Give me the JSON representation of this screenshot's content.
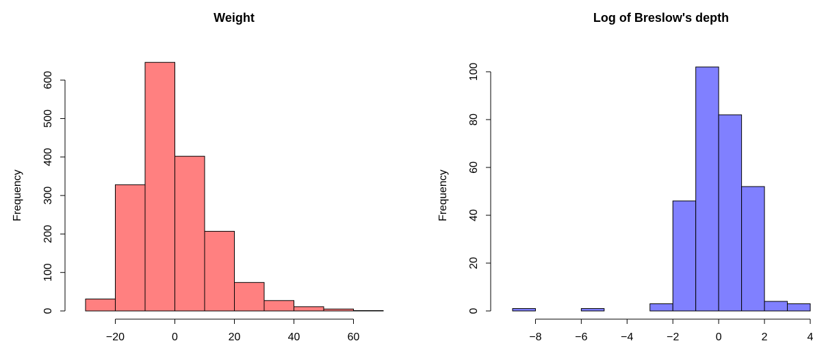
{
  "chart_data": [
    {
      "type": "bar",
      "title": "Weight",
      "xlabel": "",
      "ylabel": "Frequency",
      "color": "#ff8080",
      "bin_edges": [
        -30,
        -20,
        -10,
        0,
        10,
        20,
        30,
        40,
        50,
        60,
        70
      ],
      "values": [
        31,
        328,
        646,
        402,
        207,
        74,
        27,
        11,
        5,
        1
      ],
      "xlim": [
        -30,
        70
      ],
      "ylim": [
        0,
        650
      ],
      "x_ticks": [
        -20,
        0,
        20,
        40,
        60
      ],
      "x_tick_labels": [
        "−20",
        "0",
        "20",
        "40",
        "60"
      ],
      "y_ticks": [
        0,
        100,
        200,
        300,
        400,
        500,
        600
      ],
      "y_tick_labels": [
        "0",
        "100",
        "200",
        "300",
        "400",
        "500",
        "600"
      ],
      "grid": false
    },
    {
      "type": "bar",
      "title": "Log of Breslow's depth",
      "xlabel": "",
      "ylabel": "Frequency",
      "color": "#8080ff",
      "bin_edges": [
        -9,
        -8,
        -7,
        -6,
        -5,
        -4,
        -3,
        -2,
        -1,
        0,
        1,
        2,
        3,
        4
      ],
      "values": [
        1,
        0,
        0,
        1,
        0,
        0,
        3,
        46,
        102,
        82,
        52,
        4,
        3
      ],
      "xlim": [
        -9,
        4
      ],
      "ylim": [
        0,
        102
      ],
      "x_ticks": [
        -8,
        -6,
        -4,
        -2,
        0,
        2,
        4
      ],
      "x_tick_labels": [
        "−8",
        "−6",
        "−4",
        "−2",
        "0",
        "2",
        "4"
      ],
      "y_ticks": [
        0,
        20,
        40,
        60,
        80,
        100
      ],
      "y_tick_labels": [
        "0",
        "20",
        "40",
        "60",
        "80",
        "100"
      ],
      "grid": false
    }
  ]
}
